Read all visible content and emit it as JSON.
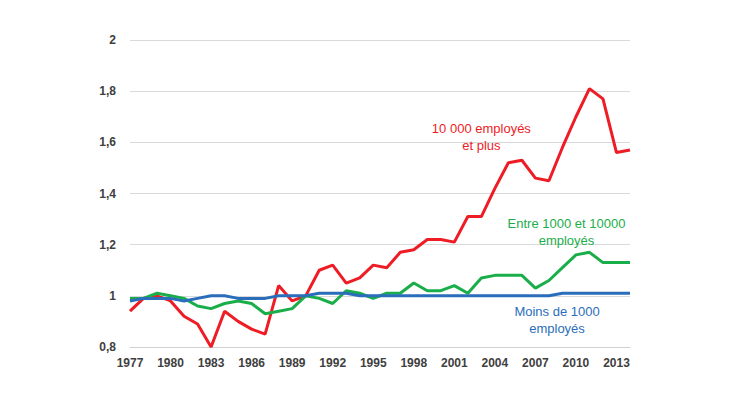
{
  "chart_data": {
    "type": "line",
    "x": [
      1977,
      1978,
      1979,
      1980,
      1981,
      1982,
      1983,
      1984,
      1985,
      1986,
      1987,
      1988,
      1989,
      1990,
      1991,
      1992,
      1993,
      1994,
      1995,
      1996,
      1997,
      1998,
      1999,
      2000,
      2001,
      2002,
      2003,
      2004,
      2005,
      2006,
      2007,
      2008,
      2009,
      2010,
      2011,
      2012,
      2013,
      2014
    ],
    "series": [
      {
        "name": "10 000 employés\net plus",
        "color": "#ee1c25",
        "values": [
          0.94,
          0.99,
          1.0,
          0.98,
          0.92,
          0.89,
          0.8,
          0.94,
          0.9,
          0.87,
          0.85,
          1.04,
          0.98,
          1.0,
          1.1,
          1.12,
          1.05,
          1.07,
          1.12,
          1.11,
          1.17,
          1.18,
          1.22,
          1.22,
          1.21,
          1.31,
          1.31,
          1.42,
          1.52,
          1.53,
          1.46,
          1.45,
          1.58,
          1.7,
          1.81,
          1.77,
          1.56,
          1.57
        ]
      },
      {
        "name": "Entre 1000 et 10000\nemployés",
        "color": "#1aae4a",
        "values": [
          0.99,
          0.99,
          1.01,
          1.0,
          0.99,
          0.96,
          0.95,
          0.97,
          0.98,
          0.97,
          0.93,
          0.94,
          0.95,
          1.0,
          0.99,
          0.97,
          1.02,
          1.01,
          0.99,
          1.01,
          1.01,
          1.05,
          1.02,
          1.02,
          1.04,
          1.01,
          1.07,
          1.08,
          1.08,
          1.08,
          1.03,
          1.06,
          1.11,
          1.16,
          1.17,
          1.13,
          1.13,
          1.13
        ]
      },
      {
        "name": "Moins de 1000\nemployés",
        "color": "#2a6ebb",
        "values": [
          0.98,
          0.99,
          0.99,
          0.99,
          0.98,
          0.99,
          1.0,
          1.0,
          0.99,
          0.99,
          0.99,
          1.0,
          1.0,
          1.0,
          1.01,
          1.01,
          1.01,
          1.0,
          1.0,
          1.0,
          1.0,
          1.0,
          1.0,
          1.0,
          1.0,
          1.0,
          1.0,
          1.0,
          1.0,
          1.0,
          1.0,
          1.0,
          1.01,
          1.01,
          1.01,
          1.01,
          1.01,
          1.01
        ]
      }
    ],
    "xlim": [
      1977,
      2014
    ],
    "xticks": [
      1977,
      1980,
      1983,
      1986,
      1989,
      1992,
      1995,
      1998,
      2001,
      2004,
      2007,
      2010,
      2013
    ],
    "ylim": [
      0.8,
      2
    ],
    "yticks": [
      {
        "value": 0.8,
        "label": "0,8"
      },
      1,
      {
        "value": 1.2,
        "label": "1,2"
      },
      {
        "value": 1.4,
        "label": "1,4"
      },
      {
        "value": 1.6,
        "label": "1,6"
      },
      {
        "value": 1.8,
        "label": "1,8"
      },
      2
    ],
    "grid": true
  }
}
